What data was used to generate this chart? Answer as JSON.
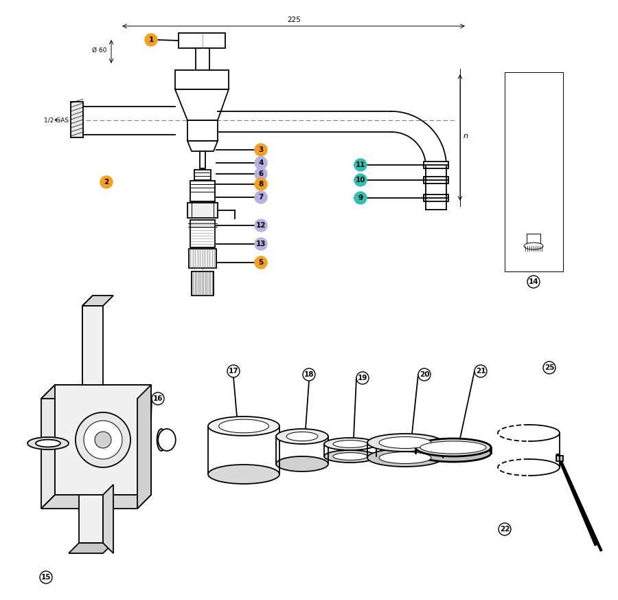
{
  "bg_color": "#ffffff",
  "lc": "#000000",
  "orange": "#F5A020",
  "teal": "#30C0B0",
  "purple": "#B8B0E0",
  "badge_r": 9,
  "lw": 1.3,
  "lw_thin": 0.7,
  "lw_thick": 2.0,
  "top_parts": {
    "orange_ids": [
      1,
      2,
      3,
      8
    ],
    "purple_ids": [
      4,
      6,
      7,
      12,
      13
    ],
    "teal_ids": [
      9,
      10,
      11
    ],
    "plain_ids": [
      5,
      14
    ]
  },
  "bottom_parts": {
    "plain_ids": [
      15,
      16,
      17,
      18,
      19,
      20,
      21,
      22,
      25
    ]
  }
}
